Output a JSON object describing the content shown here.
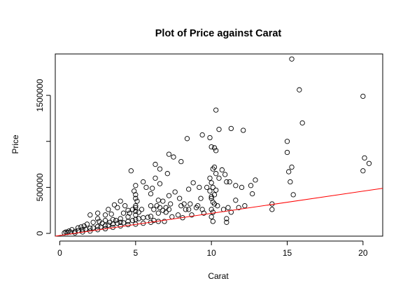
{
  "chart_data": {
    "type": "scatter",
    "title": "Plot of Price against Carat",
    "xlabel": "Carat",
    "ylabel": "Price",
    "xlim": [
      -0.3,
      21.3
    ],
    "ylim": [
      -30000,
      1950000
    ],
    "x_ticks": [
      {
        "value": 0,
        "label": "0"
      },
      {
        "value": 5,
        "label": "5"
      },
      {
        "value": 10,
        "label": "10"
      },
      {
        "value": 15,
        "label": "15"
      },
      {
        "value": 20,
        "label": "20"
      }
    ],
    "y_ticks": [
      {
        "value": 0,
        "label": "0"
      },
      {
        "value": 500000,
        "label": "500000"
      },
      {
        "value": 1000000,
        "label": ""
      },
      {
        "value": 1500000,
        "label": "1500000"
      }
    ],
    "colors": {
      "points": "#000000",
      "fit_line": "#ff0000",
      "axes": "#000000"
    },
    "fit_line": {
      "x": [
        -0.3,
        21.3
      ],
      "y": [
        -30000,
        490000
      ]
    },
    "series": [
      {
        "marker": "open-circle",
        "points": [
          [
            15.3,
            1895000
          ],
          [
            15.8,
            1560000
          ],
          [
            16.0,
            1200000
          ],
          [
            20.0,
            1490000
          ],
          [
            20.1,
            820000
          ],
          [
            20.4,
            760000
          ],
          [
            20.0,
            680000
          ],
          [
            15.0,
            1000000
          ],
          [
            15.0,
            880000
          ],
          [
            15.3,
            720000
          ],
          [
            15.1,
            670000
          ],
          [
            15.2,
            560000
          ],
          [
            15.4,
            420000
          ],
          [
            14.0,
            320000
          ],
          [
            14.0,
            260000
          ],
          [
            10.3,
            1340000
          ],
          [
            10.5,
            1130000
          ],
          [
            11.3,
            1140000
          ],
          [
            12.1,
            1120000
          ],
          [
            9.9,
            1040000
          ],
          [
            9.4,
            1070000
          ],
          [
            10.0,
            940000
          ],
          [
            10.2,
            930000
          ],
          [
            10.3,
            900000
          ],
          [
            8.4,
            1030000
          ],
          [
            8.0,
            780000
          ],
          [
            7.5,
            830000
          ],
          [
            7.2,
            860000
          ],
          [
            6.6,
            700000
          ],
          [
            6.3,
            750000
          ],
          [
            7.1,
            650000
          ],
          [
            10.2,
            720000
          ],
          [
            10.1,
            700000
          ],
          [
            10.7,
            690000
          ],
          [
            10.9,
            640000
          ],
          [
            10.5,
            600000
          ],
          [
            10.3,
            650000
          ],
          [
            11.0,
            560000
          ],
          [
            11.2,
            560000
          ],
          [
            11.6,
            520000
          ],
          [
            12.0,
            500000
          ],
          [
            12.6,
            520000
          ],
          [
            12.9,
            580000
          ],
          [
            12.2,
            300000
          ],
          [
            12.7,
            430000
          ],
          [
            9.2,
            500000
          ],
          [
            8.5,
            480000
          ],
          [
            8.8,
            550000
          ],
          [
            9.3,
            380000
          ],
          [
            9.1,
            300000
          ],
          [
            9.7,
            500000
          ],
          [
            10.0,
            400000
          ],
          [
            10.0,
            380000
          ],
          [
            10.1,
            340000
          ],
          [
            10.0,
            260000
          ],
          [
            10.1,
            230000
          ],
          [
            10.2,
            320000
          ],
          [
            10.0,
            180000
          ],
          [
            10.1,
            130000
          ],
          [
            10.4,
            300000
          ],
          [
            10.8,
            260000
          ],
          [
            11.1,
            280000
          ],
          [
            11.3,
            230000
          ],
          [
            11.6,
            360000
          ],
          [
            11.8,
            280000
          ],
          [
            11.0,
            160000
          ],
          [
            11.0,
            120000
          ],
          [
            4.7,
            680000
          ],
          [
            5.0,
            520000
          ],
          [
            4.9,
            460000
          ],
          [
            5.0,
            420000
          ],
          [
            5.0,
            380000
          ],
          [
            5.1,
            350000
          ],
          [
            6.3,
            600000
          ],
          [
            6.6,
            540000
          ],
          [
            6.1,
            490000
          ],
          [
            5.5,
            560000
          ],
          [
            5.7,
            500000
          ],
          [
            6.0,
            430000
          ],
          [
            6.5,
            360000
          ],
          [
            6.8,
            350000
          ],
          [
            7.2,
            410000
          ],
          [
            7.6,
            450000
          ],
          [
            7.9,
            380000
          ],
          [
            7.3,
            320000
          ],
          [
            8.6,
            320000
          ],
          [
            8.3,
            260000
          ],
          [
            7.0,
            280000
          ],
          [
            6.5,
            220000
          ],
          [
            7.8,
            200000
          ],
          [
            8.1,
            170000
          ],
          [
            6.2,
            140000
          ],
          [
            6.9,
            130000
          ],
          [
            7.4,
            180000
          ],
          [
            9.5,
            220000
          ],
          [
            8.7,
            200000
          ],
          [
            4.0,
            350000
          ],
          [
            4.3,
            300000
          ],
          [
            3.6,
            310000
          ],
          [
            3.8,
            280000
          ],
          [
            3.2,
            260000
          ],
          [
            4.5,
            250000
          ],
          [
            2.5,
            220000
          ],
          [
            2.0,
            200000
          ],
          [
            2.5,
            160000
          ],
          [
            3.0,
            200000
          ],
          [
            3.4,
            210000
          ],
          [
            4.2,
            220000
          ],
          [
            0.3,
            5000
          ],
          [
            0.5,
            10000
          ],
          [
            0.7,
            15000
          ],
          [
            1.0,
            20000
          ],
          [
            1.2,
            30000
          ],
          [
            1.5,
            40000
          ],
          [
            1.7,
            45000
          ],
          [
            2.0,
            55000
          ],
          [
            2.2,
            60000
          ],
          [
            2.5,
            75000
          ],
          [
            2.7,
            70000
          ],
          [
            3.0,
            85000
          ],
          [
            3.2,
            90000
          ],
          [
            3.5,
            100000
          ],
          [
            3.8,
            110000
          ],
          [
            4.0,
            120000
          ],
          [
            4.2,
            115000
          ],
          [
            4.5,
            130000
          ],
          [
            4.8,
            140000
          ],
          [
            5.0,
            150000
          ],
          [
            5.2,
            160000
          ],
          [
            5.5,
            170000
          ],
          [
            5.8,
            175000
          ],
          [
            6.0,
            185000
          ],
          [
            1.0,
            5000
          ],
          [
            1.5,
            15000
          ],
          [
            2.0,
            25000
          ],
          [
            2.5,
            40000
          ],
          [
            3.0,
            50000
          ],
          [
            3.5,
            65000
          ],
          [
            4.0,
            80000
          ],
          [
            4.5,
            95000
          ],
          [
            5.0,
            100000
          ],
          [
            5.5,
            110000
          ],
          [
            6.0,
            120000
          ],
          [
            6.5,
            130000
          ],
          [
            3.0,
            140000
          ],
          [
            3.5,
            150000
          ],
          [
            4.0,
            160000
          ],
          [
            4.5,
            180000
          ],
          [
            5.0,
            200000
          ],
          [
            5.0,
            240000
          ],
          [
            5.0,
            280000
          ],
          [
            5.0,
            300000
          ],
          [
            4.8,
            260000
          ],
          [
            4.6,
            220000
          ],
          [
            5.2,
            230000
          ],
          [
            5.4,
            260000
          ],
          [
            9.9,
            600000
          ],
          [
            10.0,
            550000
          ],
          [
            10.1,
            500000
          ],
          [
            9.9,
            460000
          ],
          [
            10.2,
            420000
          ],
          [
            10.3,
            470000
          ],
          [
            8.0,
            300000
          ],
          [
            8.2,
            320000
          ],
          [
            8.5,
            260000
          ],
          [
            9.0,
            280000
          ],
          [
            9.4,
            260000
          ],
          [
            6.0,
            300000
          ],
          [
            6.2,
            260000
          ],
          [
            6.4,
            300000
          ],
          [
            6.6,
            280000
          ],
          [
            6.8,
            250000
          ],
          [
            7.0,
            230000
          ],
          [
            7.2,
            260000
          ],
          [
            1.8,
            100000
          ],
          [
            2.2,
            120000
          ],
          [
            2.6,
            130000
          ],
          [
            2.8,
            110000
          ],
          [
            3.3,
            120000
          ],
          [
            3.7,
            140000
          ],
          [
            1.2,
            60000
          ],
          [
            1.4,
            70000
          ],
          [
            1.6,
            80000
          ],
          [
            0.8,
            40000
          ],
          [
            0.6,
            25000
          ],
          [
            0.4,
            15000
          ]
        ]
      }
    ]
  }
}
